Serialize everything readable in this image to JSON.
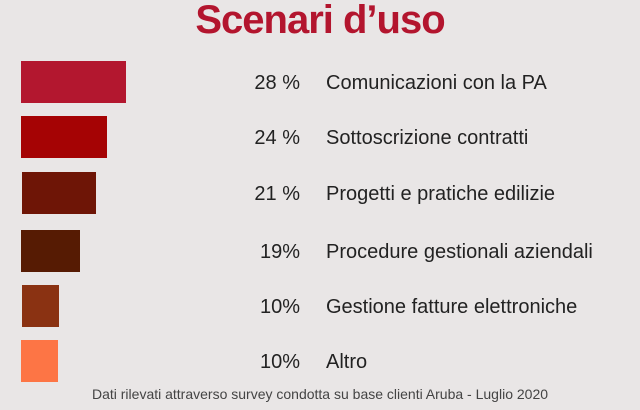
{
  "chart_data": {
    "type": "bar",
    "orientation": "horizontal",
    "title": "Scenari d’uso",
    "categories": [
      "Comunicazioni con la PA",
      "Sottoscrizione contratti",
      "Progetti e pratiche edilizie",
      "Procedure gestionali aziendali",
      "Gestione fatture elettroniche",
      "Altro"
    ],
    "values": [
      28,
      24,
      21,
      19,
      10,
      10
    ],
    "value_labels": [
      "28 %",
      "24 %",
      "21 %",
      "19%",
      "10%",
      "10%"
    ],
    "colors": [
      "#b3172f",
      "#a50304",
      "#6e1506",
      "#561b03",
      "#8a3212",
      "#fd7545"
    ],
    "grid": false,
    "legend": "none",
    "footnote": "Dati rilevati attraverso survey condotta  su base clienti  Aruba - Luglio 2020"
  }
}
